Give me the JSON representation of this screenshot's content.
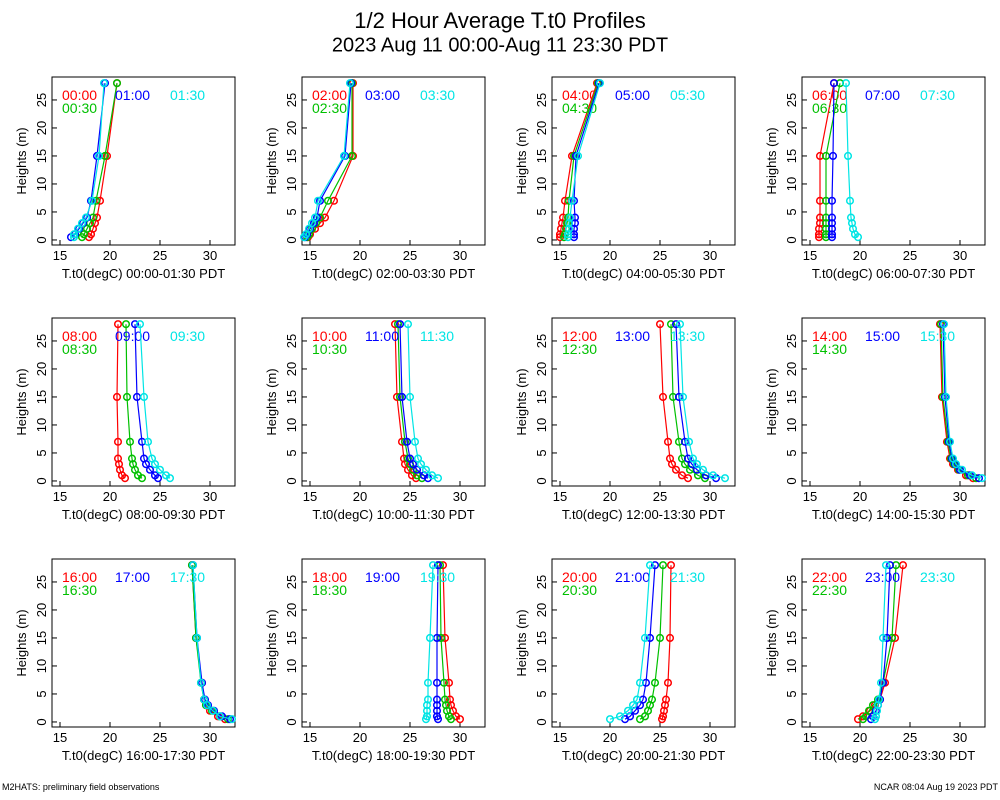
{
  "title": "1/2 Hour Average T.t0 Profiles",
  "subtitle": "2023 Aug 11 00:00-Aug 11 23:30 PDT",
  "footer_left": "M2HATS: preliminary field observations",
  "footer_right": "NCAR 08:04 Aug 19 2023 PDT",
  "chart_data": [
    {
      "type": "line",
      "xlabel": "T.t0(degC) 00:00-01:30 PDT",
      "ylabel": "Heights (m)",
      "y": [
        0.5,
        1,
        2,
        3,
        4,
        7,
        15,
        28
      ],
      "xlim": [
        14.2,
        32.5
      ],
      "ylim": [
        -0.9,
        29.1
      ],
      "xticks": [
        15,
        20,
        25,
        30
      ],
      "yticks": [
        0,
        5,
        10,
        15,
        20,
        25
      ],
      "series": [
        {
          "name": "00:00",
          "color": "#ff0000",
          "values": [
            17.9,
            18.1,
            18.3,
            18.5,
            18.7,
            19.0,
            19.7,
            20.7
          ]
        },
        {
          "name": "00:30",
          "color": "#00c000",
          "values": [
            17.2,
            17.4,
            17.7,
            18.0,
            18.3,
            18.6,
            19.5,
            20.7
          ]
        },
        {
          "name": "01:00",
          "color": "#0000ff",
          "values": [
            16.1,
            16.5,
            16.9,
            17.3,
            17.7,
            18.1,
            18.7,
            19.5
          ]
        },
        {
          "name": "01:30",
          "color": "#00e5e5",
          "values": [
            16.4,
            16.4,
            16.8,
            17.2,
            17.6,
            18.2,
            18.9,
            19.4
          ]
        }
      ]
    },
    {
      "type": "line",
      "xlabel": "T.t0(degC) 02:00-03:30 PDT",
      "ylabel": "Heights (m)",
      "y": [
        0.5,
        1,
        2,
        3,
        4,
        7,
        15,
        28
      ],
      "xlim": [
        14.2,
        32.5
      ],
      "ylim": [
        -0.9,
        29.1
      ],
      "xticks": [
        15,
        20,
        25,
        30
      ],
      "yticks": [
        0,
        5,
        10,
        15,
        20,
        25
      ],
      "series": [
        {
          "name": "02:00",
          "color": "#ff0000",
          "values": [
            14.8,
            15.0,
            15.5,
            16.0,
            16.5,
            17.4,
            19.3,
            19.3
          ]
        },
        {
          "name": "02:30",
          "color": "#00c000",
          "values": [
            14.7,
            14.9,
            15.2,
            15.6,
            16.0,
            16.8,
            19.2,
            19.2
          ]
        },
        {
          "name": "03:00",
          "color": "#0000ff",
          "values": [
            14.5,
            14.7,
            15.0,
            15.4,
            15.7,
            16.0,
            18.5,
            19.1
          ]
        },
        {
          "name": "03:30",
          "color": "#00e5e5",
          "values": [
            14.4,
            14.6,
            14.9,
            15.2,
            15.5,
            15.8,
            18.4,
            19.0
          ]
        }
      ]
    },
    {
      "type": "line",
      "xlabel": "T.t0(degC) 04:00-05:30 PDT",
      "ylabel": "Heights (m)",
      "y": [
        0.5,
        1,
        2,
        3,
        4,
        7,
        15,
        28
      ],
      "xlim": [
        14.2,
        32.5
      ],
      "ylim": [
        -0.9,
        29.1
      ],
      "xticks": [
        15,
        20,
        25,
        30
      ],
      "yticks": [
        0,
        5,
        10,
        15,
        20,
        25
      ],
      "series": [
        {
          "name": "04:00",
          "color": "#ff0000",
          "values": [
            15.0,
            15.0,
            15.1,
            15.2,
            15.3,
            15.5,
            16.2,
            18.7
          ]
        },
        {
          "name": "04:30",
          "color": "#00c000",
          "values": [
            15.4,
            15.5,
            15.6,
            15.7,
            15.8,
            15.9,
            16.4,
            18.8
          ]
        },
        {
          "name": "05:00",
          "color": "#0000ff",
          "values": [
            16.4,
            16.4,
            16.4,
            16.5,
            16.5,
            16.4,
            16.6,
            18.9
          ]
        },
        {
          "name": "05:30",
          "color": "#00e5e5",
          "values": [
            15.8,
            15.8,
            15.9,
            15.9,
            16.0,
            16.2,
            16.8,
            19.0
          ]
        }
      ]
    },
    {
      "type": "line",
      "xlabel": "T.t0(degC) 06:00-07:30 PDT",
      "ylabel": "Heights (m)",
      "y": [
        0.5,
        1,
        2,
        3,
        4,
        7,
        15,
        28
      ],
      "xlim": [
        14.2,
        32.5
      ],
      "ylim": [
        -0.9,
        29.1
      ],
      "xticks": [
        15,
        20,
        25,
        30
      ],
      "yticks": [
        0,
        5,
        10,
        15,
        20,
        25
      ],
      "series": [
        {
          "name": "06:00",
          "color": "#ff0000",
          "values": [
            15.9,
            15.9,
            15.9,
            16.0,
            16.0,
            16.0,
            16.0,
            17.4
          ]
        },
        {
          "name": "06:30",
          "color": "#00c000",
          "values": [
            16.6,
            16.6,
            16.6,
            16.6,
            16.6,
            16.6,
            16.6,
            18.0
          ]
        },
        {
          "name": "07:00",
          "color": "#0000ff",
          "values": [
            17.2,
            17.2,
            17.2,
            17.2,
            17.2,
            17.2,
            17.3,
            17.4
          ]
        },
        {
          "name": "07:30",
          "color": "#00e5e5",
          "values": [
            19.8,
            19.5,
            19.3,
            19.2,
            19.1,
            19.0,
            18.8,
            18.6
          ]
        }
      ]
    },
    {
      "type": "line",
      "xlabel": "T.t0(degC) 08:00-09:30 PDT",
      "ylabel": "Heights (m)",
      "y": [
        0.5,
        1,
        2,
        3,
        4,
        7,
        15,
        28
      ],
      "xlim": [
        14.2,
        32.5
      ],
      "ylim": [
        -0.9,
        29.1
      ],
      "xticks": [
        15,
        20,
        25,
        30
      ],
      "yticks": [
        0,
        5,
        10,
        15,
        20,
        25
      ],
      "series": [
        {
          "name": "08:00",
          "color": "#ff0000",
          "values": [
            21.5,
            21.2,
            21.0,
            20.9,
            20.8,
            20.8,
            20.7,
            20.8
          ]
        },
        {
          "name": "08:30",
          "color": "#00c000",
          "values": [
            23.2,
            22.8,
            22.5,
            22.3,
            22.2,
            22.0,
            21.7,
            21.6
          ]
        },
        {
          "name": "09:00",
          "color": "#0000ff",
          "values": [
            24.8,
            24.5,
            24.0,
            23.6,
            23.4,
            23.2,
            22.7,
            22.5
          ]
        },
        {
          "name": "09:30",
          "color": "#00e5e5",
          "values": [
            26.0,
            25.6,
            25.0,
            24.5,
            24.2,
            23.8,
            23.4,
            23.0
          ]
        }
      ]
    },
    {
      "type": "line",
      "xlabel": "T.t0(degC) 10:00-11:30 PDT",
      "ylabel": "Heights (m)",
      "y": [
        0.5,
        1,
        2,
        3,
        4,
        7,
        15,
        28
      ],
      "xlim": [
        14.2,
        32.5
      ],
      "ylim": [
        -0.9,
        29.1
      ],
      "xticks": [
        15,
        20,
        25,
        30
      ],
      "yticks": [
        0,
        5,
        10,
        15,
        20,
        25
      ],
      "series": [
        {
          "name": "10:00",
          "color": "#ff0000",
          "values": [
            25.6,
            25.2,
            24.8,
            24.5,
            24.4,
            24.2,
            23.7,
            23.5
          ]
        },
        {
          "name": "10:30",
          "color": "#00c000",
          "values": [
            26.2,
            25.7,
            25.3,
            25.0,
            24.8,
            24.5,
            24.0,
            23.8
          ]
        },
        {
          "name": "11:00",
          "color": "#0000ff",
          "values": [
            26.8,
            26.4,
            25.7,
            25.3,
            25.0,
            24.7,
            24.2,
            24.0
          ]
        },
        {
          "name": "11:30",
          "color": "#00e5e5",
          "values": [
            27.8,
            27.2,
            26.6,
            26.1,
            25.8,
            25.5,
            25.0,
            24.8
          ]
        }
      ]
    },
    {
      "type": "line",
      "xlabel": "T.t0(degC) 12:00-13:30 PDT",
      "ylabel": "Heights (m)",
      "y": [
        0.5,
        1,
        2,
        3,
        4,
        7,
        15,
        28
      ],
      "xlim": [
        14.2,
        32.5
      ],
      "ylim": [
        -0.9,
        29.1
      ],
      "xticks": [
        15,
        20,
        25,
        30
      ],
      "yticks": [
        0,
        5,
        10,
        15,
        20,
        25
      ],
      "series": [
        {
          "name": "12:00",
          "color": "#ff0000",
          "values": [
            27.8,
            27.2,
            26.6,
            26.2,
            26.0,
            25.8,
            25.3,
            25.0
          ]
        },
        {
          "name": "12:30",
          "color": "#00c000",
          "values": [
            29.5,
            28.8,
            28.0,
            27.5,
            27.2,
            26.9,
            26.3,
            26.1
          ]
        },
        {
          "name": "13:00",
          "color": "#0000ff",
          "values": [
            30.6,
            29.6,
            28.7,
            28.2,
            27.8,
            27.5,
            26.9,
            26.6
          ]
        },
        {
          "name": "13:30",
          "color": "#00e5e5",
          "values": [
            31.5,
            30.3,
            29.3,
            28.7,
            28.3,
            27.9,
            27.3,
            27.0
          ]
        }
      ]
    },
    {
      "type": "line",
      "xlabel": "T.t0(degC) 14:00-15:30 PDT",
      "ylabel": "Heights (m)",
      "y": [
        0.5,
        1,
        2,
        3,
        4,
        7,
        15,
        28
      ],
      "xlim": [
        14.2,
        32.5
      ],
      "ylim": [
        -0.9,
        29.1
      ],
      "xticks": [
        15,
        20,
        25,
        30
      ],
      "yticks": [
        0,
        5,
        10,
        15,
        20,
        25
      ],
      "series": [
        {
          "name": "14:00",
          "color": "#ff0000",
          "values": [
            31.3,
            30.6,
            29.8,
            29.3,
            29.0,
            28.7,
            28.2,
            28.0
          ]
        },
        {
          "name": "14:30",
          "color": "#00c000",
          "values": [
            31.6,
            30.8,
            29.9,
            29.4,
            29.1,
            28.8,
            28.3,
            28.1
          ]
        },
        {
          "name": "15:00",
          "color": "#0000ff",
          "values": [
            31.9,
            31.0,
            30.0,
            29.5,
            29.2,
            28.9,
            28.5,
            28.3
          ]
        },
        {
          "name": "15:30",
          "color": "#00e5e5",
          "values": [
            32.2,
            31.2,
            30.2,
            29.6,
            29.3,
            29.0,
            28.6,
            28.4
          ]
        }
      ]
    },
    {
      "type": "line",
      "xlabel": "T.t0(degC) 16:00-17:30 PDT",
      "ylabel": "Heights (m)",
      "y": [
        0.5,
        1,
        2,
        3,
        4,
        7,
        15,
        28
      ],
      "xlim": [
        14.2,
        32.5
      ],
      "ylim": [
        -0.9,
        29.1
      ],
      "xticks": [
        15,
        20,
        25,
        30
      ],
      "yticks": [
        0,
        5,
        10,
        15,
        20,
        25
      ],
      "series": [
        {
          "name": "16:00",
          "color": "#ff0000",
          "values": [
            31.5,
            30.8,
            30.0,
            29.6,
            29.4,
            29.2,
            28.6,
            28.2
          ]
        },
        {
          "name": "16:30",
          "color": "#00c000",
          "values": [
            31.8,
            31.0,
            30.2,
            29.6,
            29.4,
            29.1,
            28.6,
            28.2
          ]
        },
        {
          "name": "17:00",
          "color": "#0000ff",
          "values": [
            32.0,
            31.2,
            30.4,
            29.8,
            29.5,
            29.2,
            28.7,
            28.3
          ]
        },
        {
          "name": "17:30",
          "color": "#00e5e5",
          "values": [
            32.2,
            31.0,
            30.3,
            29.7,
            29.4,
            29.1,
            28.7,
            28.3
          ]
        }
      ]
    },
    {
      "type": "line",
      "xlabel": "T.t0(degC) 18:00-19:30 PDT",
      "ylabel": "Heights (m)",
      "y": [
        0.5,
        1,
        2,
        3,
        4,
        7,
        15,
        28
      ],
      "xlim": [
        14.2,
        32.5
      ],
      "ylim": [
        -0.9,
        29.1
      ],
      "xticks": [
        15,
        20,
        25,
        30
      ],
      "yticks": [
        0,
        5,
        10,
        15,
        20,
        25
      ],
      "series": [
        {
          "name": "18:00",
          "color": "#ff0000",
          "values": [
            30.0,
            29.6,
            29.3,
            29.1,
            29.0,
            28.9,
            28.5,
            28.3
          ]
        },
        {
          "name": "18:30",
          "color": "#00c000",
          "values": [
            29.1,
            28.9,
            28.7,
            28.6,
            28.5,
            28.4,
            28.1,
            28.0
          ]
        },
        {
          "name": "19:00",
          "color": "#0000ff",
          "values": [
            27.8,
            27.7,
            27.7,
            27.7,
            27.7,
            27.7,
            27.7,
            27.8
          ]
        },
        {
          "name": "19:30",
          "color": "#00e5e5",
          "values": [
            26.6,
            26.7,
            26.7,
            26.7,
            26.8,
            26.8,
            27.0,
            27.3
          ]
        }
      ]
    },
    {
      "type": "line",
      "xlabel": "T.t0(degC) 20:00-21:30 PDT",
      "ylabel": "Heights (m)",
      "y": [
        0.5,
        1,
        2,
        3,
        4,
        7,
        15,
        28
      ],
      "xlim": [
        14.2,
        32.5
      ],
      "ylim": [
        -0.9,
        29.1
      ],
      "xticks": [
        15,
        20,
        25,
        30
      ],
      "yticks": [
        0,
        5,
        10,
        15,
        20,
        25
      ],
      "series": [
        {
          "name": "20:00",
          "color": "#ff0000",
          "values": [
            25.2,
            25.3,
            25.4,
            25.5,
            25.6,
            25.8,
            26.0,
            26.1
          ]
        },
        {
          "name": "20:30",
          "color": "#00c000",
          "values": [
            23.0,
            23.5,
            23.8,
            24.0,
            24.2,
            24.5,
            25.0,
            25.3
          ]
        },
        {
          "name": "21:00",
          "color": "#0000ff",
          "values": [
            21.5,
            22.0,
            22.5,
            23.0,
            23.3,
            23.6,
            24.0,
            24.5
          ]
        },
        {
          "name": "21:30",
          "color": "#00e5e5",
          "values": [
            20.0,
            21.0,
            21.8,
            22.3,
            22.7,
            23.0,
            23.5,
            24.0
          ]
        }
      ]
    },
    {
      "type": "line",
      "xlabel": "T.t0(degC) 22:00-23:30 PDT",
      "ylabel": "Heights (m)",
      "y": [
        0.5,
        1,
        2,
        3,
        4,
        7,
        15,
        28
      ],
      "xlim": [
        14.2,
        32.5
      ],
      "ylim": [
        -0.9,
        29.1
      ],
      "xticks": [
        15,
        20,
        25,
        30
      ],
      "yticks": [
        0,
        5,
        10,
        15,
        20,
        25
      ],
      "series": [
        {
          "name": "22:00",
          "color": "#ff0000",
          "values": [
            19.8,
            20.3,
            21.0,
            21.5,
            22.0,
            22.5,
            23.5,
            24.3
          ]
        },
        {
          "name": "22:30",
          "color": "#00c000",
          "values": [
            20.3,
            20.6,
            20.9,
            21.3,
            21.8,
            22.3,
            23.2,
            23.6
          ]
        },
        {
          "name": "23:00",
          "color": "#0000ff",
          "values": [
            21.1,
            21.3,
            21.6,
            21.8,
            22.0,
            22.3,
            22.7,
            23.0
          ]
        },
        {
          "name": "23:30",
          "color": "#00e5e5",
          "values": [
            21.5,
            21.6,
            21.7,
            21.8,
            21.9,
            22.1,
            22.3,
            22.6
          ]
        }
      ]
    }
  ]
}
